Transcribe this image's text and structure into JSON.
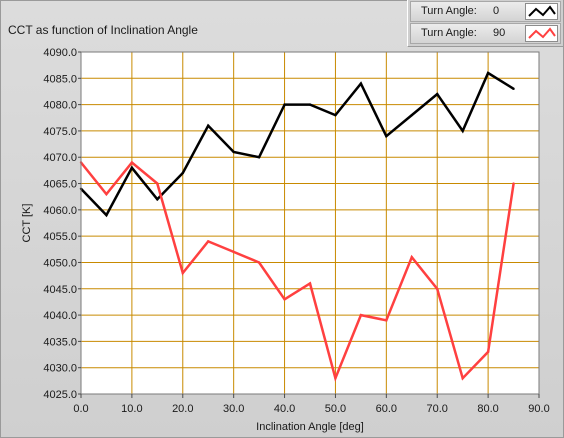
{
  "chart_data": {
    "type": "line",
    "title": "CCT as function of Inclination Angle",
    "xlabel": "Inclination Angle [deg]",
    "ylabel": "CCT [K]",
    "xlim": [
      0,
      90
    ],
    "ylim": [
      4025,
      4090
    ],
    "x_ticks": [
      "0.0",
      "10.0",
      "20.0",
      "30.0",
      "40.0",
      "50.0",
      "60.0",
      "70.0",
      "80.0",
      "90.0"
    ],
    "x_tick_values": [
      0,
      10,
      20,
      30,
      40,
      50,
      60,
      70,
      80,
      90
    ],
    "y_ticks": [
      "4025.0",
      "4030.0",
      "4035.0",
      "4040.0",
      "4045.0",
      "4050.0",
      "4055.0",
      "4060.0",
      "4065.0",
      "4070.0",
      "4075.0",
      "4080.0",
      "4085.0",
      "4090.0"
    ],
    "y_tick_values": [
      4025,
      4030,
      4035,
      4040,
      4045,
      4050,
      4055,
      4060,
      4065,
      4070,
      4075,
      4080,
      4085,
      4090
    ],
    "grid": true,
    "legend_position": "top-right",
    "x": [
      0,
      5,
      10,
      15,
      20,
      25,
      30,
      35,
      40,
      45,
      50,
      55,
      60,
      65,
      70,
      75,
      80,
      85
    ],
    "series": [
      {
        "label": "Turn Angle:",
        "value": "0",
        "color": "#000000",
        "values": [
          4064,
          4059,
          4068,
          4062,
          4067,
          4076,
          4071,
          4070,
          4080,
          4080,
          4078,
          4084,
          4074,
          4078,
          4082,
          4075,
          4086,
          4083
        ]
      },
      {
        "label": "Turn Angle:",
        "value": "90",
        "color": "#ff4040",
        "values": [
          4069,
          4063,
          4069,
          4065,
          4048,
          4054,
          4052,
          4050,
          4043,
          4046,
          4028,
          4040,
          4039,
          4051,
          4045,
          4028,
          4033,
          4065
        ]
      }
    ],
    "colors": {
      "plot_background": "#ffffff",
      "grid": "#c88a00",
      "panel": "#d4d4d4"
    }
  }
}
